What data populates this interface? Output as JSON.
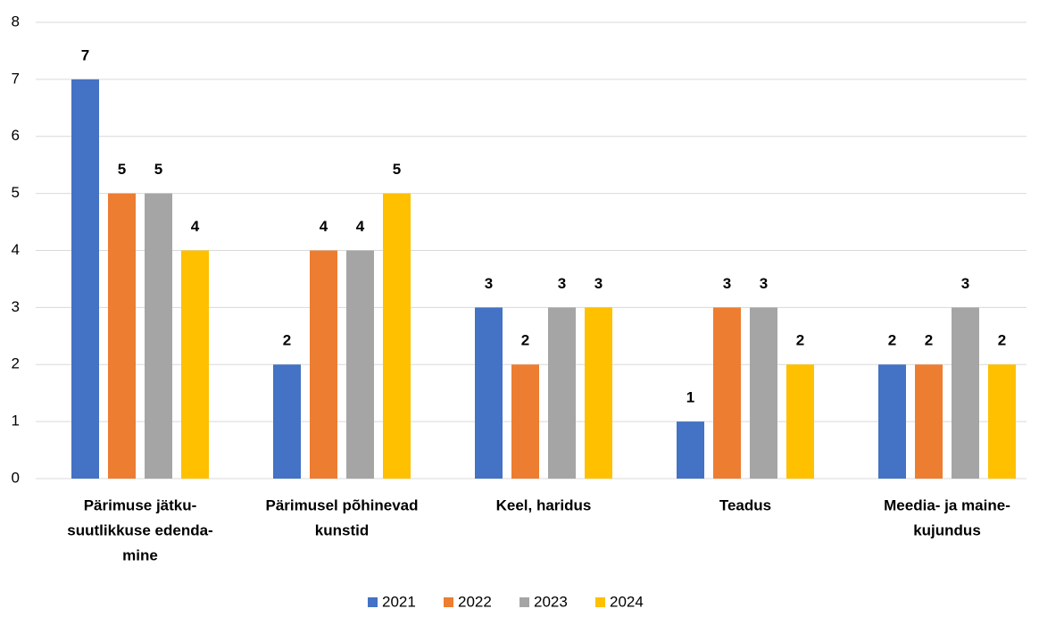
{
  "chart_data": {
    "type": "bar",
    "categories": [
      [
        "Pärimuse jätku-",
        "suutlikkuse edenda-",
        "mine"
      ],
      [
        "Pärimusel põhinevad",
        "kunstid"
      ],
      [
        "Keel, haridus"
      ],
      [
        "Teadus"
      ],
      [
        "Meedia- ja maine-",
        "kujundus"
      ]
    ],
    "series": [
      {
        "name": "2021",
        "color": "#4472c4",
        "values": [
          7,
          2,
          3,
          1,
          2
        ]
      },
      {
        "name": "2022",
        "color": "#ed7d31",
        "values": [
          5,
          4,
          2,
          3,
          2
        ]
      },
      {
        "name": "2023",
        "color": "#a5a5a5",
        "values": [
          5,
          4,
          3,
          3,
          3
        ]
      },
      {
        "name": "2024",
        "color": "#ffc000",
        "values": [
          4,
          5,
          3,
          2,
          2
        ]
      }
    ],
    "ylim": [
      0,
      8
    ],
    "yticks": [
      0,
      1,
      2,
      3,
      4,
      5,
      6,
      7,
      8
    ],
    "grid": true,
    "legend": "bottom",
    "data_labels": true
  }
}
